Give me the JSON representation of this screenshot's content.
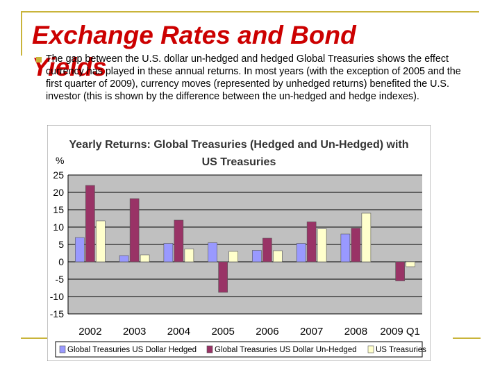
{
  "slide": {
    "title_line1": "Exchange Rates and Bond",
    "title_line2": "Yields",
    "bullet_text": "The gap between the U.S. dollar un-hedged and hedged Global Treasuries shows the effect currency has played in these annual returns. In most years (with the exception of 2005 and the first quarter of 2009), currency moves (represented by unhedged returns) benefited the U.S. investor (this is shown by the difference between the un-hedged and hedge indexes)."
  },
  "colors": {
    "title": "#cc0000",
    "accent": "#c9b43a",
    "plot_bg": "#c0c0c0",
    "frame_bg": "#ffffff"
  },
  "chart_data": {
    "type": "bar",
    "title": "Yearly Returns: Global Treasuries (Hedged and Un-Hedged) with US Treasuries",
    "ylabel": "%",
    "xlabel": "",
    "categories": [
      "2002",
      "2003",
      "2004",
      "2005",
      "2006",
      "2007",
      "2008",
      "2009 Q1"
    ],
    "yticks": [
      "25",
      "20",
      "15",
      "10",
      "5",
      "0",
      "-5",
      "-10",
      "-15"
    ],
    "ylim": [
      -15,
      25
    ],
    "grid": true,
    "legend_position": "bottom",
    "series": [
      {
        "name": "Global Treasuries US Dollar Hedged",
        "color": "#9999ff",
        "values": [
          7,
          1.8,
          5.3,
          5.5,
          3.3,
          5.3,
          8,
          0
        ]
      },
      {
        "name": "Global Treasuries US Dollar Un-Hedged",
        "color": "#993366",
        "values": [
          22,
          18.2,
          12,
          -8.8,
          6.8,
          11.5,
          9.7,
          -5.5
        ]
      },
      {
        "name": "US Treasuries",
        "color": "#ffffcc",
        "values": [
          11.8,
          2,
          3.7,
          3,
          3.2,
          9.5,
          14,
          -1.4
        ]
      }
    ]
  }
}
